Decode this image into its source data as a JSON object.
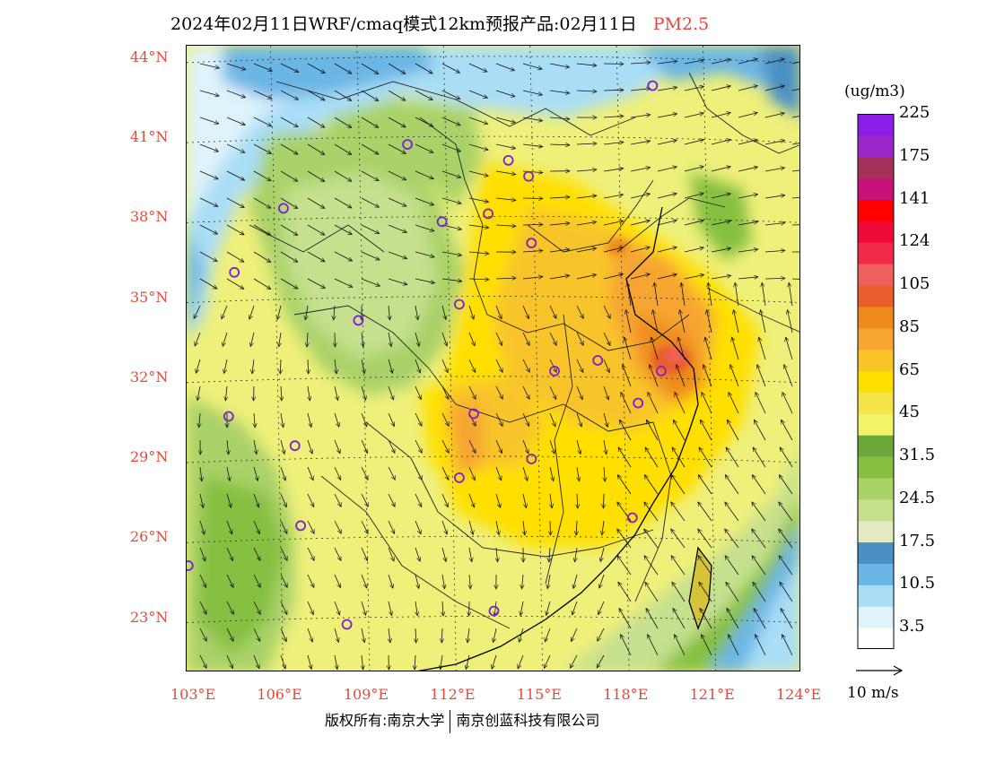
{
  "header": {
    "title": "2024年02月11日WRF/cmaq模式12km预报产品:02月11日",
    "pollutant": "PM2.5"
  },
  "map": {
    "lon_ticks": [
      "103°E",
      "106°E",
      "109°E",
      "112°E",
      "115°E",
      "118°E",
      "121°E",
      "124°E"
    ],
    "lat_ticks": [
      "44°N",
      "41°N",
      "38°N",
      "35°N",
      "32°N",
      "29°N",
      "26°N",
      "23°N"
    ],
    "lon_range": [
      103,
      124
    ],
    "lat_range": [
      21,
      44.5
    ],
    "station_markers": [
      {
        "lon": 119.0,
        "lat": 43.0
      },
      {
        "lon": 110.5,
        "lat": 40.8
      },
      {
        "lon": 114.0,
        "lat": 40.2
      },
      {
        "lon": 114.7,
        "lat": 39.6
      },
      {
        "lon": 106.2,
        "lat": 38.4
      },
      {
        "lon": 111.7,
        "lat": 37.9
      },
      {
        "lon": 113.3,
        "lat": 38.2
      },
      {
        "lon": 114.8,
        "lat": 37.1
      },
      {
        "lon": 104.5,
        "lat": 36.0
      },
      {
        "lon": 112.3,
        "lat": 34.8
      },
      {
        "lon": 108.8,
        "lat": 34.2
      },
      {
        "lon": 115.6,
        "lat": 32.3
      },
      {
        "lon": 117.1,
        "lat": 32.7
      },
      {
        "lon": 119.3,
        "lat": 32.3
      },
      {
        "lon": 118.5,
        "lat": 31.1
      },
      {
        "lon": 104.3,
        "lat": 30.6
      },
      {
        "lon": 112.8,
        "lat": 30.7
      },
      {
        "lon": 106.6,
        "lat": 29.5
      },
      {
        "lon": 114.8,
        "lat": 29.0
      },
      {
        "lon": 112.3,
        "lat": 28.3
      },
      {
        "lon": 118.3,
        "lat": 26.8
      },
      {
        "lon": 106.8,
        "lat": 26.5
      },
      {
        "lon": 102.9,
        "lat": 25.0
      },
      {
        "lon": 113.5,
        "lat": 23.3
      },
      {
        "lon": 108.4,
        "lat": 22.8
      }
    ]
  },
  "colorbar": {
    "title": "(ug/m3)",
    "colors": [
      "#ffffff",
      "#dff3fb",
      "#a9def6",
      "#6bb6e4",
      "#4a90c4",
      "#e2ecc0",
      "#c6e08d",
      "#a9d267",
      "#85c040",
      "#6aa83a",
      "#f3f36a",
      "#f6e548",
      "#ffdf00",
      "#f8c42a",
      "#f6a532",
      "#ee8b1c",
      "#e95e2c",
      "#f0605c",
      "#f22a4a",
      "#f00a39",
      "#ff0000",
      "#c8127a",
      "#a6305c",
      "#9a26c8",
      "#8a1ee8"
    ],
    "labels": [
      "3.5",
      "10.5",
      "17.5",
      "24.5",
      "31.5",
      "45",
      "65",
      "85",
      "105",
      "124",
      "141",
      "175",
      "225"
    ]
  },
  "legend": {
    "wind_reference": "10 m/s"
  },
  "footer": {
    "copyright": "版权所有:南京大学",
    "company": "南京创蓝科技有限公司"
  }
}
